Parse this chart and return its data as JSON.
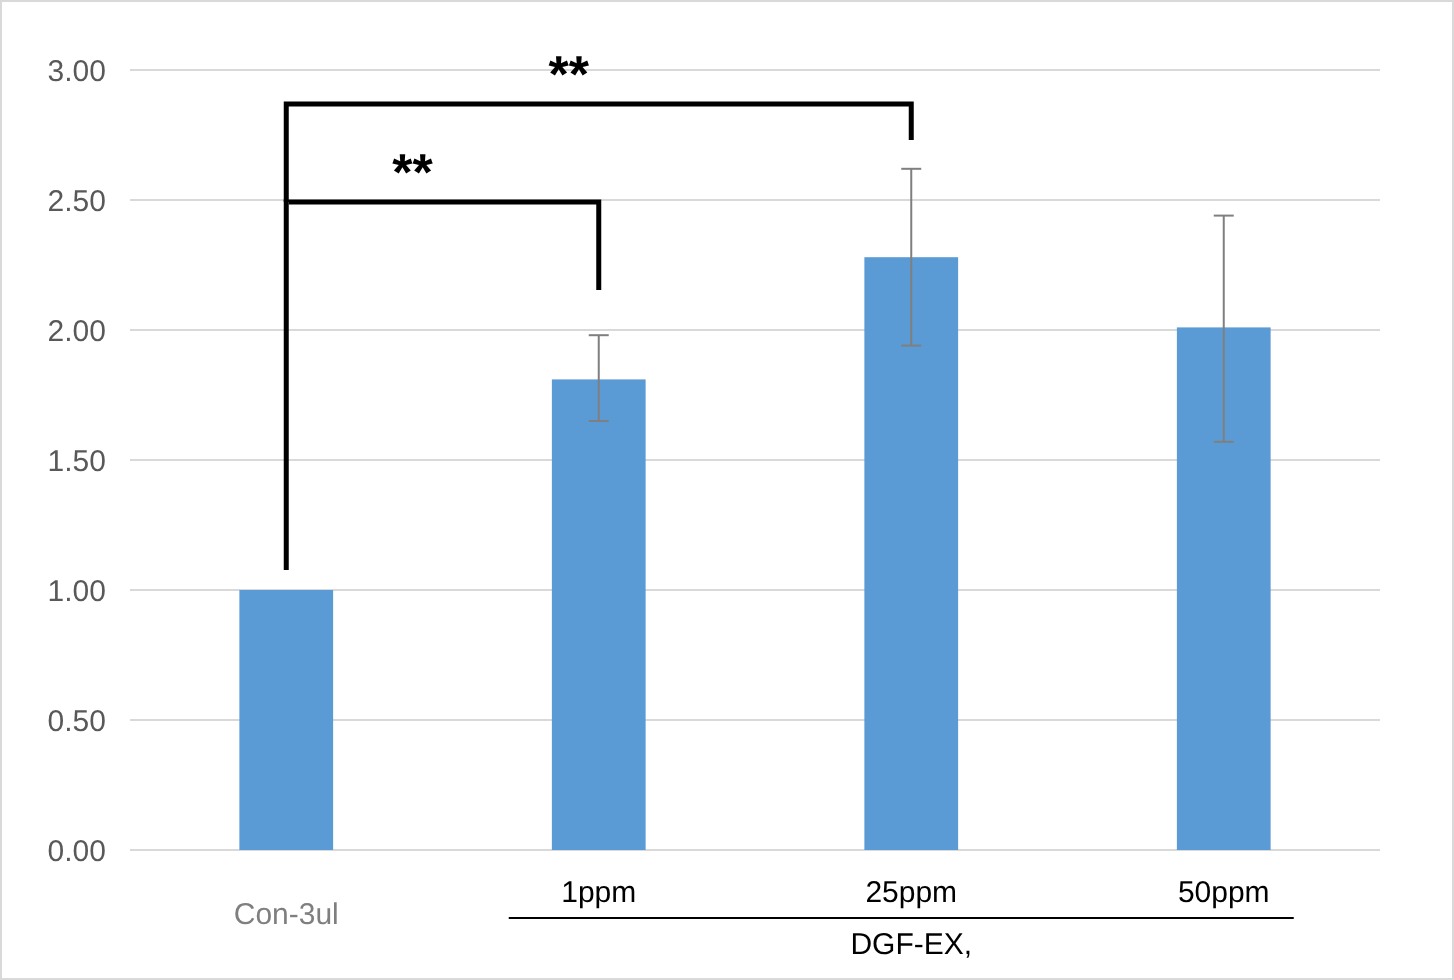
{
  "chart_data": {
    "type": "bar",
    "categories": [
      "Con-3ul",
      "1ppm",
      "25ppm",
      "50ppm"
    ],
    "values": [
      1.0,
      1.81,
      2.28,
      2.01
    ],
    "errors": [
      null,
      [
        1.65,
        1.98
      ],
      [
        1.94,
        2.62
      ],
      [
        1.57,
        2.44
      ]
    ],
    "color": "#5b9bd5",
    "xlabel": "DGF-EX,",
    "ylim": [
      0,
      3
    ],
    "yticks": [
      {
        "value": 0,
        "label": "0.00"
      },
      {
        "value": 0.5,
        "label": "0.50"
      },
      {
        "value": 1,
        "label": "1.00"
      },
      {
        "value": 1.5,
        "label": "1.50"
      },
      {
        "value": 2,
        "label": "2.00"
      },
      {
        "value": 2.5,
        "label": "2.50"
      },
      {
        "value": 3,
        "label": "3.00"
      }
    ],
    "grid": "y",
    "annotations": [
      "**",
      "**"
    ]
  }
}
